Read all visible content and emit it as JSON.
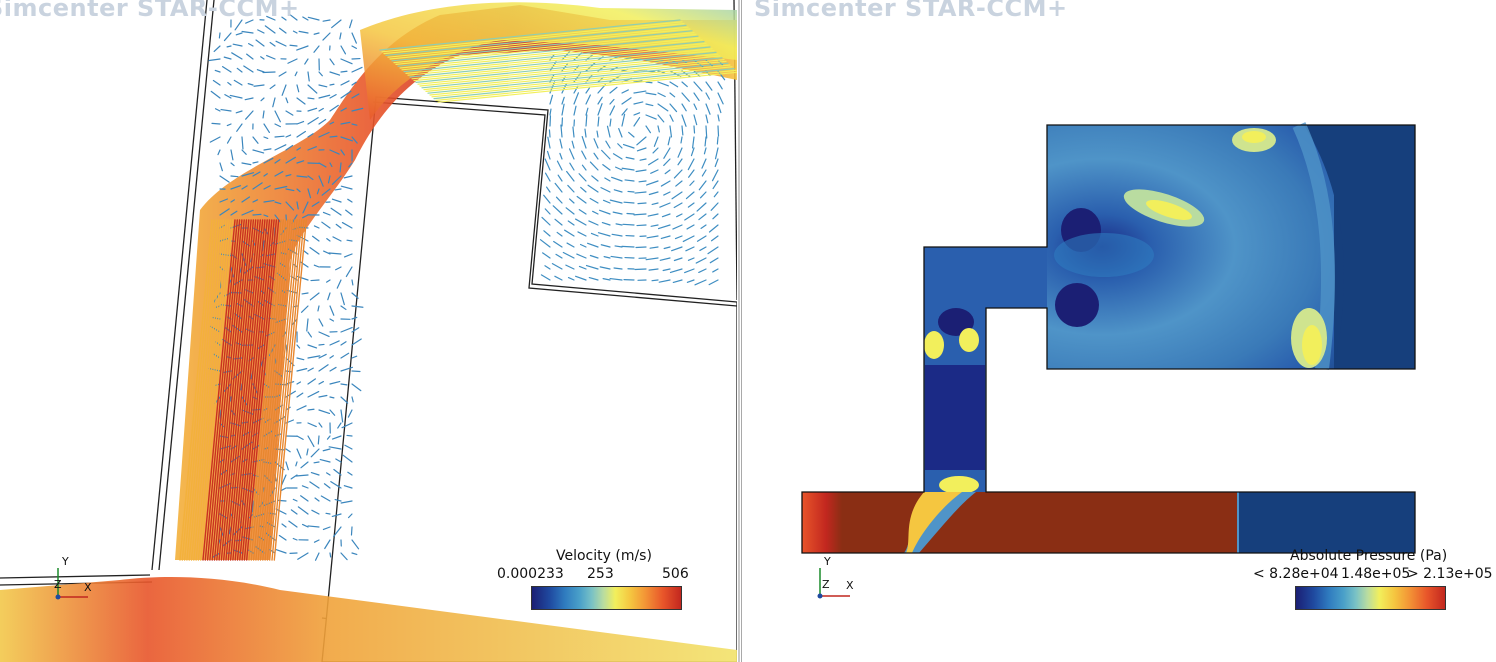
{
  "app": {
    "watermark": "Simcenter STAR-CCM+"
  },
  "left_view": {
    "legend": {
      "title": "Velocity (m/s)",
      "min": "0.000233",
      "mid": "253",
      "max": "506"
    },
    "axes": {
      "y": "Y",
      "z": "Z",
      "x": "X"
    }
  },
  "right_view": {
    "legend": {
      "title": "Absolute Pressure (Pa)",
      "min": "< 8.28e+04",
      "mid": "1.48e+05",
      "max": "> 2.13e+05"
    },
    "axes": {
      "y": "Y",
      "z": "Z",
      "x": "X"
    }
  },
  "colors": {
    "low": "#1b1f74",
    "mid": "#f2ef5c",
    "high": "#c2271f",
    "pressure_high": "#8a2e14",
    "pressure_low": "#163f7c"
  }
}
